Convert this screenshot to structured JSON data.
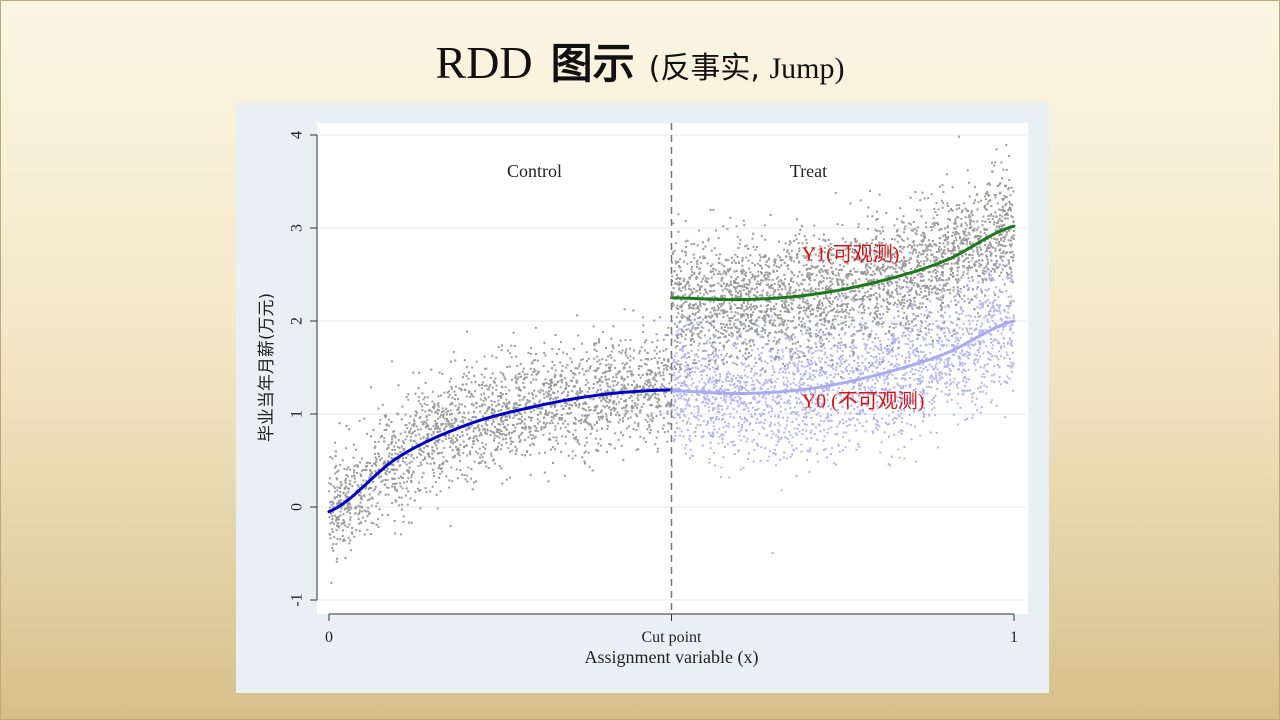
{
  "slide": {
    "title_main": "RDD",
    "title_cn": "图示",
    "title_sub_open": "(反事实,",
    "title_sub_en": "Jump)"
  },
  "chart_data": {
    "type": "scatter",
    "xlabel": "Assignment variable (x)",
    "ylabel": "毕业当年月薪(万元)",
    "xlim": [
      0,
      1
    ],
    "ylim": [
      -1,
      4
    ],
    "x_ticks": [
      {
        "value": 0,
        "label": "0"
      },
      {
        "value": 0.5,
        "label": "Cut point"
      },
      {
        "value": 1,
        "label": "1"
      }
    ],
    "y_ticks": [
      -1,
      0,
      1,
      2,
      3,
      4
    ],
    "cutoff": 0.5,
    "grid": "horizontal",
    "region_labels": [
      {
        "text": "Control",
        "x": 0.3,
        "y": 3.55
      },
      {
        "text": "Treat",
        "x": 0.7,
        "y": 3.55
      }
    ],
    "annotations": [
      {
        "text": "Y1(可观测)",
        "x": 0.69,
        "y": 2.65,
        "color": "#e01010"
      },
      {
        "text": "Y0 (不可观测)",
        "x": 0.69,
        "y": 1.07,
        "color": "#e01010"
      }
    ],
    "series": [
      {
        "kind": "curve",
        "color": "#0000cc",
        "domain": [
          0,
          0.5
        ],
        "x": [
          0,
          0.1,
          0.2,
          0.3,
          0.4,
          0.5
        ],
        "y": [
          -0.05,
          0.53,
          0.88,
          1.08,
          1.21,
          1.26
        ]
      },
      {
        "kind": "curve",
        "color": "#1a7a1a",
        "domain": [
          0.5,
          1
        ],
        "x": [
          0.5,
          0.6,
          0.7,
          0.8,
          0.9,
          1.0
        ],
        "y": [
          2.25,
          2.23,
          2.28,
          2.42,
          2.65,
          3.02
        ]
      },
      {
        "kind": "curve",
        "color": "#aaaaf0",
        "domain": [
          0.5,
          1
        ],
        "x": [
          0.5,
          0.6,
          0.7,
          0.8,
          0.9,
          1.0
        ],
        "y": [
          1.25,
          1.22,
          1.27,
          1.42,
          1.65,
          2.0
        ]
      },
      {
        "kind": "scatter",
        "color": "#9a9a9a",
        "domain": [
          0,
          0.5
        ],
        "count": 2200,
        "spread": 0.3
      },
      {
        "kind": "scatter",
        "color": "#9a9a9a",
        "domain": [
          0.5,
          1
        ],
        "count": 2800,
        "spread": 0.33
      },
      {
        "kind": "scatter",
        "color": "#b4b4f2",
        "domain": [
          0.5,
          1
        ],
        "count": 2400,
        "spread": 0.36
      }
    ],
    "colors": {
      "control_curve": "#0000cc",
      "treated_curve": "#1a7a1a",
      "counterfactual_curve": "#aaaaf0",
      "observed_points": "#9a9a9a",
      "counterfactual_points": "#b4b4f2",
      "annotation": "#e01010",
      "plot_bg": "#ffffff",
      "frame_bg": "#e9f0f3"
    }
  }
}
